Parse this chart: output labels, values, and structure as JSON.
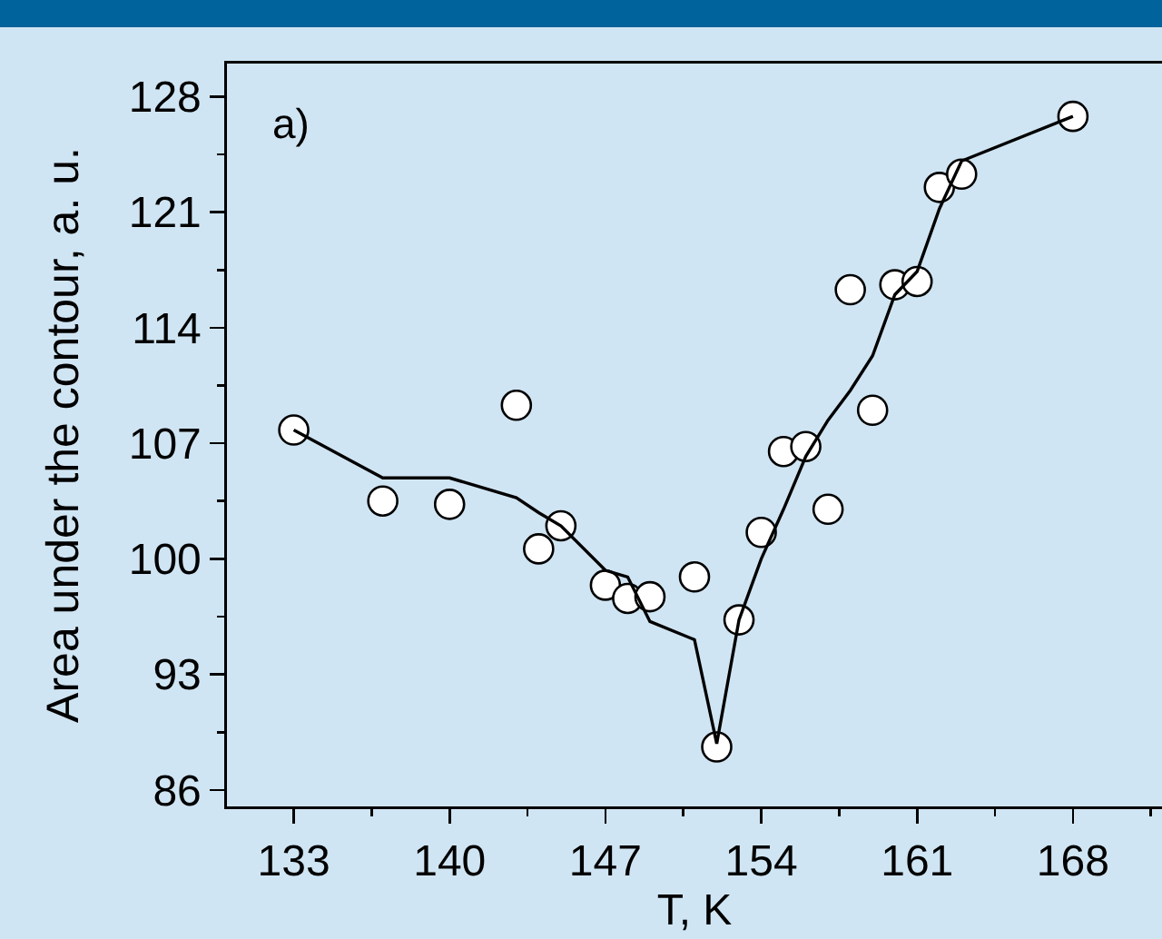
{
  "chart_data": {
    "type": "scatter",
    "xlabel": "T, K",
    "ylabel": "Area under the contour, a. u.",
    "annotations": [
      "a)"
    ],
    "x": [
      133,
      137,
      140,
      143,
      144,
      145,
      147,
      148,
      149,
      151,
      152,
      153,
      154,
      155,
      156,
      157,
      158,
      159,
      160,
      161,
      162,
      163,
      168
    ],
    "series": [
      {
        "type": "scatter",
        "color": "#ffffff",
        "marker": "circle",
        "values": [
          107.8,
          103.5,
          103.3,
          109.3,
          100.6,
          102.0,
          98.4,
          97.6,
          97.7,
          98.9,
          88.6,
          96.3,
          101.6,
          106.5,
          106.8,
          103.0,
          116.3,
          109.0,
          116.6,
          116.8,
          122.5,
          123.3,
          126.8
        ]
      },
      {
        "type": "line",
        "color": "#000000",
        "marker": "none",
        "line_style": "solid",
        "values": [
          107.8,
          104.9,
          104.9,
          103.7,
          102.8,
          102.0,
          99.3,
          98.9,
          96.2,
          95.1,
          88.8,
          96.3,
          100.0,
          103.0,
          106.2,
          108.4,
          110.2,
          112.3,
          116.0,
          117.4,
          121.2,
          124.1,
          126.8
        ]
      }
    ],
    "xlim": [
      130,
      172
    ],
    "ylim": [
      85,
      130
    ],
    "xticks": [
      133,
      {
        "value": 136.5,
        "label": null
      },
      140,
      {
        "value": 143.5,
        "label": null
      },
      147,
      {
        "value": 150.5,
        "label": null
      },
      154,
      {
        "value": 157.5,
        "label": null
      },
      161,
      {
        "value": 164.5,
        "label": null
      },
      168,
      {
        "value": 171.5,
        "label": null
      }
    ],
    "yticks": [
      86,
      {
        "value": 89.5,
        "label": null
      },
      93,
      {
        "value": 96.5,
        "label": null
      },
      100,
      {
        "value": 103.5,
        "label": null
      },
      107,
      {
        "value": 110.5,
        "label": null
      },
      114,
      {
        "value": 117.5,
        "label": null
      },
      121,
      {
        "value": 124.5,
        "label": null
      },
      128
    ],
    "grid": false
  }
}
